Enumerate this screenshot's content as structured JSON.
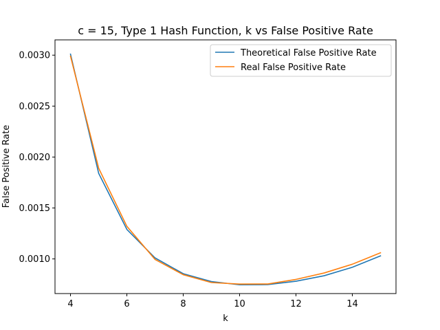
{
  "chart_data": {
    "type": "line",
    "title": "c = 15, Type 1 Hash Function, k vs False Positive Rate",
    "xlabel": "k",
    "ylabel": "False Positive Rate",
    "xlim": [
      3.45,
      15.55
    ],
    "ylim": [
      0.00066,
      0.00315
    ],
    "xticks": [
      4,
      6,
      8,
      10,
      12,
      14
    ],
    "xtick_labels": [
      "4",
      "6",
      "8",
      "10",
      "12",
      "14"
    ],
    "yticks": [
      0.001,
      0.0015,
      0.002,
      0.0025,
      0.003
    ],
    "ytick_labels": [
      "0.0010",
      "0.0015",
      "0.0020",
      "0.0025",
      "0.0030"
    ],
    "grid": false,
    "legend_position": "top-right",
    "x": [
      4,
      5,
      6,
      7,
      8,
      9,
      10,
      11,
      12,
      13,
      14,
      15
    ],
    "series": [
      {
        "name": "Theoretical False Positive Rate",
        "color": "#1f77b4",
        "values": [
          0.00301,
          0.00184,
          0.00129,
          0.00101,
          0.000855,
          0.000778,
          0.000746,
          0.000748,
          0.000781,
          0.000835,
          0.000918,
          0.00103
        ]
      },
      {
        "name": "Real False Positive Rate",
        "color": "#ff7f0e",
        "values": [
          0.00299,
          0.00189,
          0.00132,
          0.000995,
          0.000845,
          0.000768,
          0.000753,
          0.000754,
          0.000799,
          0.000862,
          0.000948,
          0.00106
        ]
      }
    ]
  }
}
